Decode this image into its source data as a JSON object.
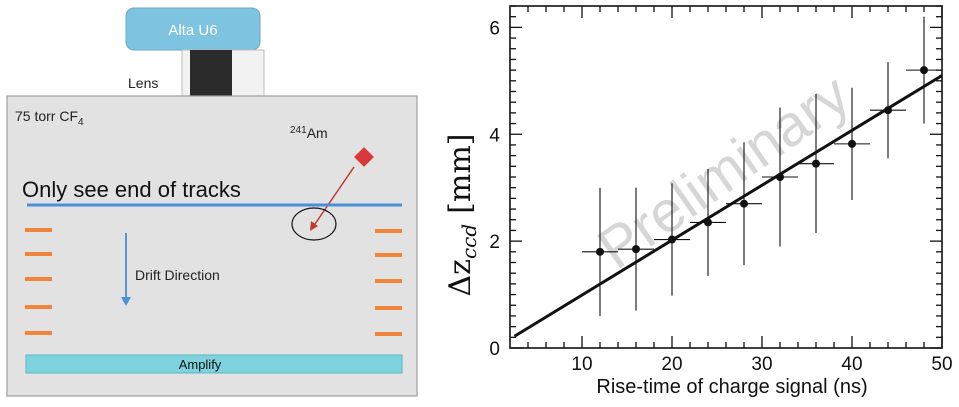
{
  "diagram": {
    "camera_label": "Alta U6",
    "lens_label": "Lens",
    "gas_label": "75 torr CF",
    "gas_subscript": "4",
    "source_superscript": "241",
    "source_label": "Am",
    "tracks_label": "Only see end of tracks",
    "drift_label": "Drift Direction",
    "amplify_label": "Amplify",
    "colors": {
      "camera": "#7ec3e0",
      "lens": "#2b2b2b",
      "chamber": "#e2e2e2",
      "electrodes": "#f0843a",
      "plane": "#4a90d9",
      "source": "#d9383a",
      "amplify": "#7fd3df"
    }
  },
  "chart_data": {
    "type": "scatter",
    "xlabel": "Rise-time of charge signal (ns)",
    "ylabel": "Δz",
    "ylabel_subscript": "ccd",
    "ylabel_unit": "[mm]",
    "watermark": "Preliminary",
    "xlim": [
      2,
      50
    ],
    "ylim": [
      0,
      6.4
    ],
    "xticks": [
      10,
      20,
      30,
      40,
      50
    ],
    "yticks": [
      0,
      2,
      4,
      6
    ],
    "points": [
      {
        "x": 12,
        "y": 1.8,
        "yerr": 1.2,
        "xerr": 2
      },
      {
        "x": 16,
        "y": 1.85,
        "yerr": 1.15,
        "xerr": 2
      },
      {
        "x": 20,
        "y": 2.03,
        "yerr": 1.05,
        "xerr": 2
      },
      {
        "x": 24,
        "y": 2.35,
        "yerr": 1.0,
        "xerr": 2
      },
      {
        "x": 28,
        "y": 2.7,
        "yerr": 1.15,
        "xerr": 2
      },
      {
        "x": 32,
        "y": 3.2,
        "yerr": 1.3,
        "xerr": 2
      },
      {
        "x": 36,
        "y": 3.45,
        "yerr": 1.3,
        "xerr": 2
      },
      {
        "x": 40,
        "y": 3.82,
        "yerr": 1.05,
        "xerr": 2
      },
      {
        "x": 44,
        "y": 4.45,
        "yerr": 0.9,
        "xerr": 2
      },
      {
        "x": 48,
        "y": 5.2,
        "yerr": 1.0,
        "xerr": 2
      }
    ],
    "fit_line": {
      "x": [
        2.5,
        50
      ],
      "y": [
        0.22,
        5.1
      ]
    }
  }
}
